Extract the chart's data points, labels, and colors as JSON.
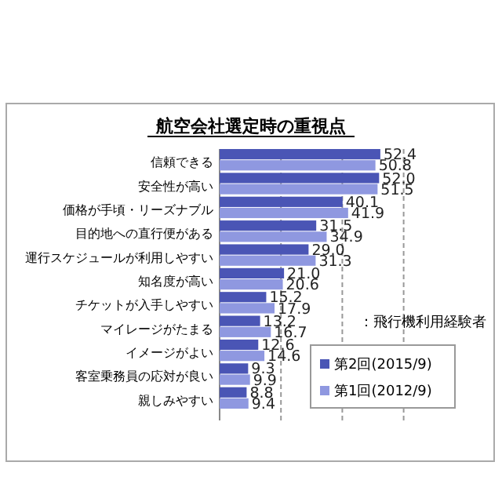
{
  "chart_data": {
    "type": "bar",
    "orientation": "horizontal",
    "title": "航空会社選定時の重視点",
    "categories": [
      "信頼できる",
      "安全性が高い",
      "価格が手頃・リーズナブル",
      "目的地への直行便がある",
      "運行スケジュールが利用しやすい",
      "知名度が高い",
      "チケットが入手しやすい",
      "マイレージがたまる",
      "イメージがよい",
      "客室乗務員の応対が良い",
      "親しみやすい"
    ],
    "series": [
      {
        "name": "第2回(2015/9)",
        "color": "#4a55b5",
        "values": [
          52.4,
          52.0,
          40.1,
          31.5,
          29.0,
          21.0,
          15.2,
          13.2,
          12.6,
          9.3,
          8.8
        ],
        "value_labels": [
          "52.4",
          "52.0",
          "40.1",
          "31.5",
          "29.0",
          "21.0",
          "15.2",
          "13.2",
          "12.6",
          "9.3",
          "8.8"
        ]
      },
      {
        "name": "第1回(2012/9)",
        "color": "#8f98e0",
        "values": [
          50.8,
          51.5,
          41.9,
          34.9,
          31.3,
          20.6,
          17.9,
          16.7,
          14.6,
          9.9,
          9.4
        ],
        "value_labels": [
          "50.8",
          "51.5",
          "41.9",
          "34.9",
          "31.3",
          "20.6",
          "17.9",
          "16.7",
          "14.6",
          "9.9",
          "9.4"
        ]
      }
    ],
    "xlim": [
      0,
      89
    ],
    "xticks": [
      {
        "value": 20,
        "label": null
      },
      {
        "value": 40,
        "label": null
      },
      {
        "value": 60,
        "label": null
      }
    ],
    "grid": "x",
    "legend": "bottom right",
    "annotations": [
      "：飛行機利用経験者"
    ]
  }
}
